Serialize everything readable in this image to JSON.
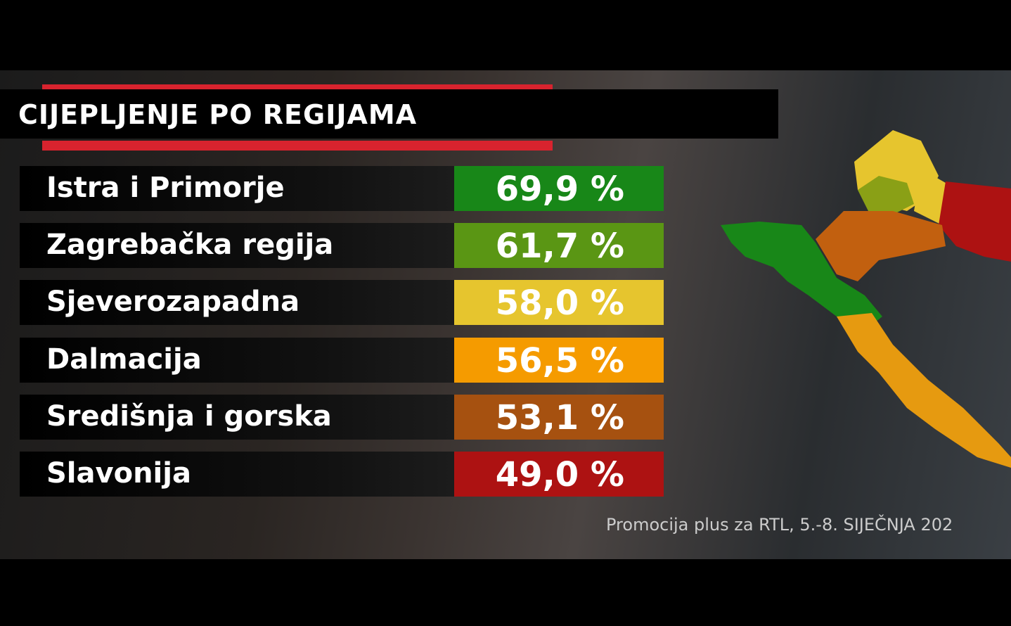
{
  "title": "CIJEPLJENJE PO REGIJAMA",
  "rows": [
    {
      "label": "Istra i Primorje",
      "value": "69,9 %",
      "color": "#188718"
    },
    {
      "label": "Zagrebačka regija",
      "value": "61,7 %",
      "color": "#5a9614"
    },
    {
      "label": "Sjeverozapadna",
      "value": "58,0 %",
      "color": "#e6c52e"
    },
    {
      "label": "Dalmacija",
      "value": "56,5 %",
      "color": "#f59b00"
    },
    {
      "label": "Središnja i gorska",
      "value": "53,1 %",
      "color": "#a65110"
    },
    {
      "label": "Slavonija",
      "value": "49,0 %",
      "color": "#ad1212"
    }
  ],
  "source": "Promocija plus za RTL, 5.-8. SIJEČNJA 202"
}
